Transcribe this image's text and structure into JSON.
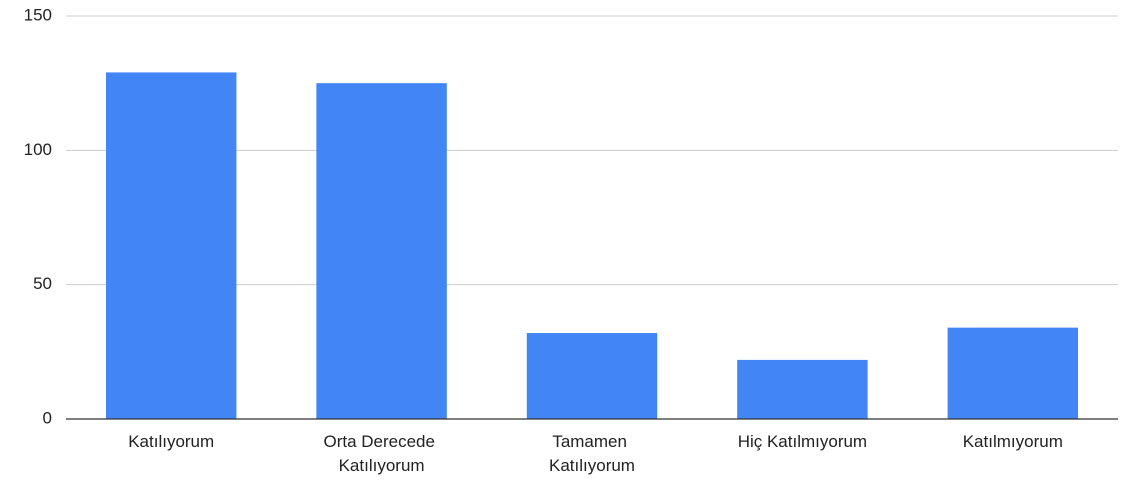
{
  "chart_data": {
    "type": "bar",
    "categories": [
      "Katılıyorum",
      "Orta Derecede Katılıyorum",
      "Tamamen Katılıyorum",
      "Hiç Katılmıyorum",
      "Katılmıyorum"
    ],
    "values": [
      129,
      125,
      32,
      22,
      34
    ],
    "color": "#4285f4",
    "ylim": [
      0,
      150
    ],
    "yticks": [
      0,
      50,
      100,
      150
    ],
    "grid": true
  }
}
